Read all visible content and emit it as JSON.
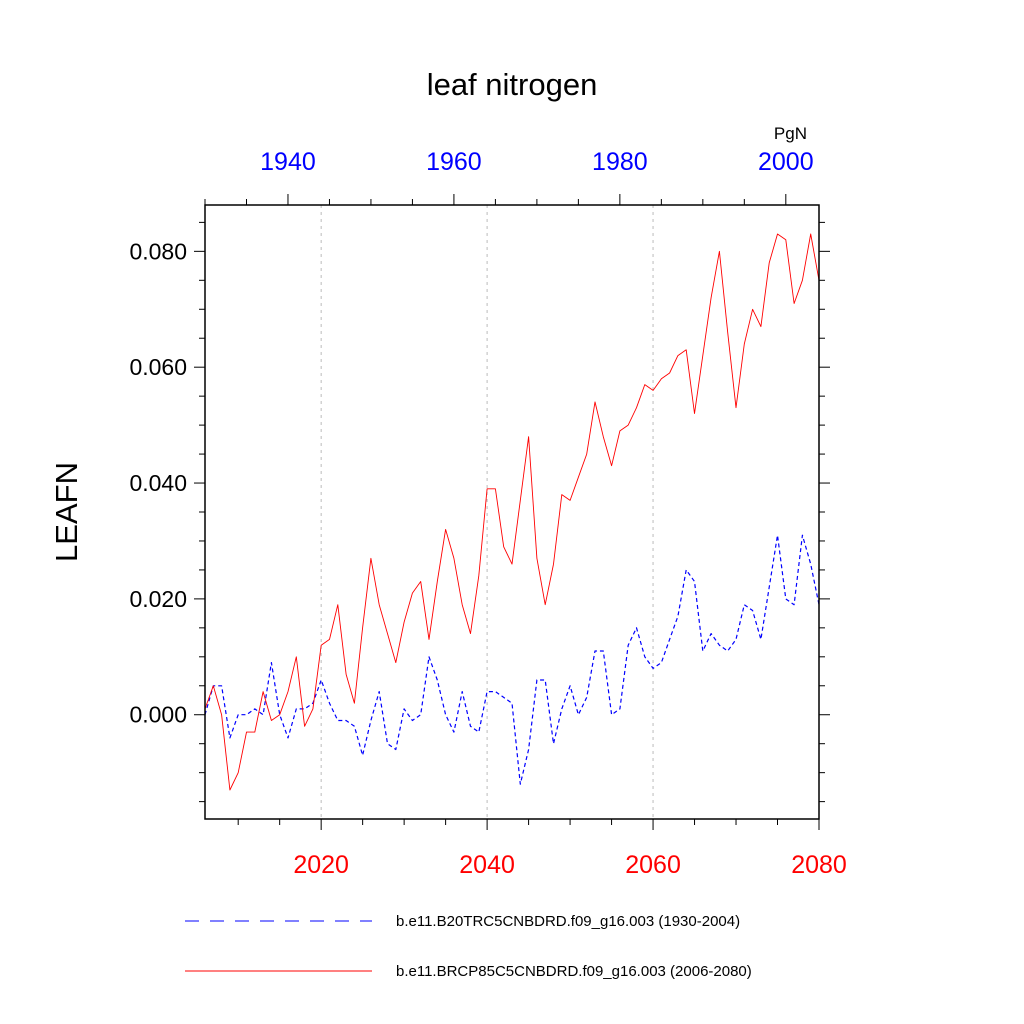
{
  "chart_data": {
    "type": "line",
    "title": "leaf nitrogen",
    "ylabel": "LEAFN",
    "units": "PgN",
    "ylim": [
      -0.018,
      0.088
    ],
    "yticks": [
      {
        "value": 0.0,
        "label": "0.000"
      },
      {
        "value": 0.02,
        "label": "0.020"
      },
      {
        "value": 0.04,
        "label": "0.040"
      },
      {
        "value": 0.06,
        "label": "0.060"
      },
      {
        "value": 0.08,
        "label": "0.080"
      }
    ],
    "bottom_axis": {
      "xlim": [
        2006,
        2080
      ],
      "ticks": [
        {
          "value": 2020,
          "label": "2020"
        },
        {
          "value": 2040,
          "label": "2040"
        },
        {
          "value": 2060,
          "label": "2060"
        },
        {
          "value": 2080,
          "label": "2080"
        }
      ],
      "color": "#ff0000"
    },
    "top_axis": {
      "xlim": [
        1930,
        2004
      ],
      "ticks": [
        {
          "value": 1940,
          "label": "1940"
        },
        {
          "value": 1960,
          "label": "1960"
        },
        {
          "value": 1980,
          "label": "1980"
        },
        {
          "value": 2000,
          "label": "2000"
        }
      ],
      "color": "#0000ff"
    },
    "gridlines_x": [
      2020,
      2040,
      2060
    ],
    "series": [
      {
        "name": "b.e11.B20TRC5CNBDRD.f09_g16.003 (1930-2004)",
        "color": "#0000ff",
        "style": "dashed",
        "x_start": 1930,
        "values": [
          0.0,
          0.005,
          0.005,
          -0.004,
          0.0,
          0.0,
          0.001,
          0.0,
          0.009,
          0.0,
          -0.004,
          0.001,
          0.001,
          0.002,
          0.006,
          0.002,
          -0.001,
          -0.001,
          -0.002,
          -0.007,
          -0.001,
          0.004,
          -0.005,
          -0.006,
          0.001,
          -0.001,
          0.0,
          0.01,
          0.006,
          0.0,
          -0.003,
          0.004,
          -0.002,
          -0.003,
          0.004,
          0.004,
          0.003,
          0.002,
          -0.012,
          -0.006,
          0.006,
          0.006,
          -0.005,
          0.001,
          0.005,
          0.0,
          0.003,
          0.011,
          0.011,
          0.0,
          0.001,
          0.012,
          0.015,
          0.01,
          0.008,
          0.009,
          0.013,
          0.017,
          0.025,
          0.023,
          0.011,
          0.014,
          0.012,
          0.011,
          0.013,
          0.019,
          0.018,
          0.013,
          0.022,
          0.031,
          0.02,
          0.019,
          0.031,
          0.026,
          0.019
        ]
      },
      {
        "name": "b.e11.BRCP85C5CNBDRD.f09_g16.003 (2006-2080)",
        "color": "#ff0000",
        "style": "solid",
        "x_start": 2006,
        "values": [
          0.001,
          0.005,
          0.0,
          -0.013,
          -0.01,
          -0.003,
          -0.003,
          0.004,
          -0.001,
          0.0,
          0.004,
          0.01,
          -0.002,
          0.001,
          0.012,
          0.013,
          0.019,
          0.007,
          0.002,
          0.015,
          0.027,
          0.019,
          0.014,
          0.009,
          0.016,
          0.021,
          0.023,
          0.013,
          0.023,
          0.032,
          0.027,
          0.019,
          0.014,
          0.024,
          0.039,
          0.039,
          0.029,
          0.026,
          0.037,
          0.048,
          0.027,
          0.019,
          0.026,
          0.038,
          0.037,
          0.041,
          0.045,
          0.054,
          0.048,
          0.043,
          0.049,
          0.05,
          0.053,
          0.057,
          0.056,
          0.058,
          0.059,
          0.062,
          0.063,
          0.052,
          0.062,
          0.072,
          0.08,
          0.066,
          0.053,
          0.064,
          0.07,
          0.067,
          0.078,
          0.083,
          0.082,
          0.071,
          0.075,
          0.083,
          0.075
        ]
      }
    ],
    "legend_position": "bottom"
  }
}
